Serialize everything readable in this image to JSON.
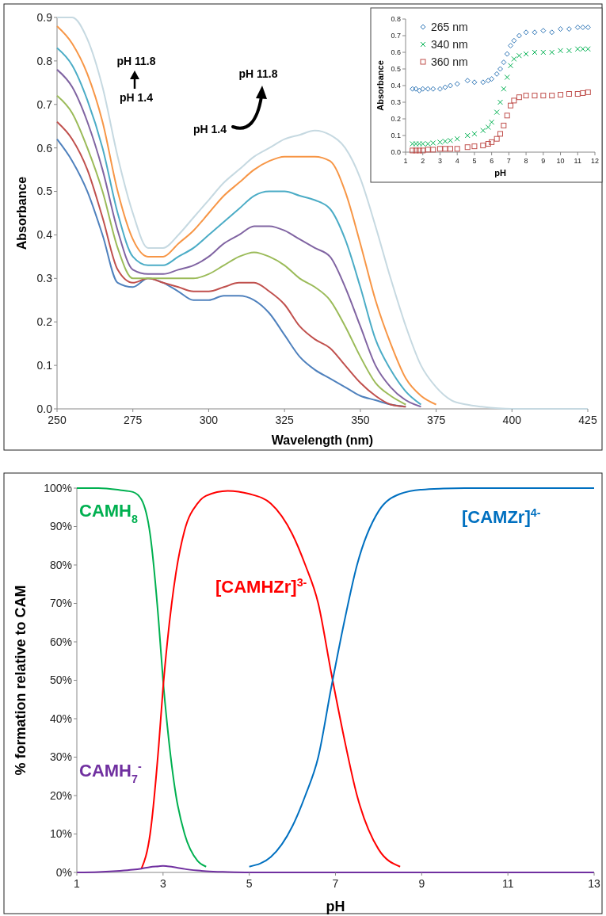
{
  "chart_data": [
    {
      "type": "line",
      "xlabel": "Wavelength (nm)",
      "ylabel": "Absorbance",
      "xlim": [
        250,
        425
      ],
      "xticks": [
        250,
        275,
        300,
        325,
        350,
        375,
        400,
        425
      ],
      "ylim": [
        0,
        0.9
      ],
      "yticks": [
        {
          "value": 0,
          "label": "0.0"
        },
        0.1,
        0.2,
        0.3,
        0.4,
        0.5,
        0.6,
        0.7,
        0.8,
        0.9
      ],
      "marker": "none",
      "annotations": [
        "pH 11.8",
        "pH 1.4",
        "pH 11.8",
        "pH 1.4"
      ],
      "x": [
        250,
        255,
        260,
        265,
        270,
        275,
        280,
        285,
        290,
        295,
        300,
        305,
        310,
        315,
        320,
        325,
        330,
        335,
        340,
        345,
        350,
        355,
        360,
        365,
        370,
        375,
        380,
        385,
        390,
        400,
        410,
        425
      ],
      "series": [
        {
          "color": "#4f81bd",
          "values": [
            0.62,
            0.57,
            0.5,
            0.4,
            0.29,
            0.28,
            0.3,
            0.29,
            0.27,
            0.25,
            0.25,
            0.26,
            0.26,
            0.25,
            0.22,
            0.17,
            0.12,
            0.09,
            0.07,
            0.05,
            0.03,
            0.02,
            0.01,
            0.005,
            null,
            null,
            null,
            null,
            null,
            null,
            null,
            null
          ]
        },
        {
          "color": "#c0504d",
          "values": [
            0.66,
            0.62,
            0.55,
            0.44,
            0.32,
            0.29,
            0.3,
            0.29,
            0.28,
            0.27,
            0.27,
            0.28,
            0.29,
            0.29,
            0.27,
            0.24,
            0.19,
            0.16,
            0.14,
            0.1,
            0.06,
            0.03,
            0.01,
            0.005,
            null,
            null,
            null,
            null,
            null,
            null,
            null,
            null
          ]
        },
        {
          "color": "#9bbb59",
          "values": [
            0.72,
            0.68,
            0.6,
            0.5,
            0.37,
            0.3,
            0.3,
            0.3,
            0.3,
            0.3,
            0.31,
            0.33,
            0.35,
            0.36,
            0.35,
            0.33,
            0.3,
            0.28,
            0.25,
            0.19,
            0.12,
            0.06,
            0.03,
            0.01,
            null,
            null,
            null,
            null,
            null,
            null,
            null,
            null
          ]
        },
        {
          "color": "#8064a2",
          "values": [
            0.78,
            0.74,
            0.66,
            0.55,
            0.41,
            0.32,
            0.31,
            0.31,
            0.32,
            0.33,
            0.35,
            0.38,
            0.4,
            0.42,
            0.42,
            0.41,
            0.39,
            0.37,
            0.35,
            0.28,
            0.19,
            0.1,
            0.05,
            0.02,
            0.005,
            null,
            null,
            null,
            null,
            null,
            null,
            null
          ]
        },
        {
          "color": "#4bacc6",
          "values": [
            0.83,
            0.79,
            0.71,
            0.6,
            0.45,
            0.35,
            0.33,
            0.33,
            0.35,
            0.37,
            0.4,
            0.43,
            0.46,
            0.49,
            0.5,
            0.5,
            0.49,
            0.48,
            0.46,
            0.39,
            0.28,
            0.16,
            0.09,
            0.04,
            0.01,
            null,
            null,
            null,
            null,
            null,
            null,
            null
          ]
        },
        {
          "color": "#f79646",
          "values": [
            0.88,
            0.84,
            0.77,
            0.66,
            0.5,
            0.39,
            0.35,
            0.35,
            0.38,
            0.41,
            0.45,
            0.49,
            0.52,
            0.55,
            0.57,
            0.58,
            0.58,
            0.58,
            0.57,
            0.5,
            0.38,
            0.25,
            0.15,
            0.07,
            0.03,
            0.01,
            null,
            null,
            null,
            null,
            null,
            null
          ]
        },
        {
          "color": "#c6d9e1",
          "values": [
            0.9,
            0.9,
            0.85,
            0.74,
            0.58,
            0.45,
            0.37,
            0.37,
            0.4,
            0.44,
            0.48,
            0.52,
            0.55,
            0.58,
            0.6,
            0.62,
            0.63,
            0.64,
            0.63,
            0.6,
            0.53,
            0.42,
            0.3,
            0.19,
            0.1,
            0.05,
            0.02,
            0.01,
            0.005,
            0,
            0,
            0
          ]
        }
      ]
    },
    {
      "type": "scatter",
      "xlabel": "pH",
      "ylabel": "Absorbance",
      "xlim": [
        1,
        12
      ],
      "xticks": [
        1,
        2,
        3,
        4,
        5,
        6,
        7,
        8,
        9,
        10,
        11,
        12
      ],
      "ylim": [
        0,
        0.8
      ],
      "yticks": [
        {
          "value": 0,
          "label": "0.0"
        },
        0.1,
        0.2,
        0.3,
        0.4,
        0.5,
        0.6,
        0.7,
        0.8
      ],
      "legend": "top left",
      "x": [
        1.4,
        1.6,
        1.8,
        2.0,
        2.3,
        2.6,
        3.0,
        3.3,
        3.6,
        4.0,
        4.6,
        5.0,
        5.5,
        5.8,
        6.0,
        6.3,
        6.5,
        6.7,
        6.9,
        7.1,
        7.3,
        7.6,
        8.0,
        8.5,
        9.0,
        9.5,
        10.0,
        10.5,
        11.0,
        11.3,
        11.6
      ],
      "series": [
        {
          "name": "265 nm",
          "color": "#2e75b6",
          "marker": "diamond",
          "values": [
            0.38,
            0.38,
            0.37,
            0.38,
            0.38,
            0.38,
            0.38,
            0.39,
            0.4,
            0.41,
            0.43,
            0.42,
            0.42,
            0.43,
            0.44,
            0.47,
            0.5,
            0.54,
            0.59,
            0.64,
            0.67,
            0.7,
            0.72,
            0.72,
            0.73,
            0.72,
            0.74,
            0.74,
            0.75,
            0.75,
            0.75
          ]
        },
        {
          "name": "340 nm",
          "color": "#00b050",
          "marker": "cross",
          "values": [
            0.05,
            0.05,
            0.05,
            0.05,
            0.05,
            0.055,
            0.06,
            0.065,
            0.07,
            0.08,
            0.1,
            0.11,
            0.13,
            0.15,
            0.18,
            0.24,
            0.3,
            0.38,
            0.45,
            0.52,
            0.56,
            0.58,
            0.59,
            0.6,
            0.6,
            0.6,
            0.61,
            0.61,
            0.62,
            0.62,
            0.62
          ]
        },
        {
          "name": "360 nm",
          "color": "#c0504d",
          "marker": "square",
          "values": [
            0.01,
            0.01,
            0.01,
            0.01,
            0.015,
            0.015,
            0.02,
            0.02,
            0.02,
            0.02,
            0.03,
            0.035,
            0.04,
            0.05,
            0.06,
            0.08,
            0.11,
            0.16,
            0.22,
            0.28,
            0.31,
            0.33,
            0.34,
            0.34,
            0.34,
            0.34,
            0.345,
            0.35,
            0.35,
            0.355,
            0.36
          ]
        }
      ]
    },
    {
      "type": "line",
      "xlabel": "pH",
      "ylabel": "% formation relative to CAM",
      "xlim": [
        1,
        13
      ],
      "xticks": [
        1,
        3,
        5,
        7,
        9,
        11,
        13
      ],
      "ylim": [
        0,
        100
      ],
      "yticks": [
        {
          "value": 0,
          "label": "0%"
        },
        {
          "value": 10,
          "label": "10%"
        },
        {
          "value": 20,
          "label": "20%"
        },
        {
          "value": 30,
          "label": "30%"
        },
        {
          "value": 40,
          "label": "40%"
        },
        {
          "value": 50,
          "label": "50%"
        },
        {
          "value": 60,
          "label": "60%"
        },
        {
          "value": 70,
          "label": "70%"
        },
        {
          "value": 80,
          "label": "80%"
        },
        {
          "value": 90,
          "label": "90%"
        },
        {
          "value": 100,
          "label": "100%"
        }
      ],
      "marker": "none",
      "x": [
        1,
        1.5,
        2,
        2.3,
        2.5,
        2.7,
        2.9,
        3.0,
        3.1,
        3.3,
        3.5,
        3.8,
        4,
        4.5,
        5,
        5.5,
        6,
        6.3,
        6.6,
        6.9,
        7.2,
        7.5,
        8,
        8.5,
        9,
        9.5,
        10,
        11,
        12,
        13
      ],
      "series": [
        {
          "name": "CAMH$_{8}$",
          "color": "#00b050",
          "values": [
            100,
            100,
            99.5,
            99,
            97,
            88,
            65,
            50,
            38,
            20,
            10,
            3,
            1.5,
            null,
            null,
            null,
            null,
            null,
            null,
            null,
            null,
            null,
            null,
            null,
            null,
            null,
            null,
            null,
            null,
            null
          ]
        },
        {
          "name": "[CAMHZr]$^{3-}$",
          "color": "#ff0000",
          "values": [
            null,
            null,
            null,
            null,
            1,
            10,
            33,
            48,
            60,
            78,
            89,
            96,
            98,
            99.3,
            98.5,
            96,
            88,
            80,
            70,
            52,
            35,
            20,
            6,
            1.5,
            null,
            null,
            null,
            null,
            null,
            null
          ]
        },
        {
          "name": "[CAMZr]$^{4-}$",
          "color": "#0070c0",
          "values": [
            null,
            null,
            null,
            null,
            null,
            null,
            null,
            null,
            null,
            null,
            null,
            null,
            null,
            null,
            1.5,
            4,
            12,
            20,
            30,
            48,
            65,
            80,
            94,
            98.5,
            99.6,
            99.9,
            100,
            100,
            100,
            100
          ]
        },
        {
          "name": "CAMH$_{7}$$^{-}$",
          "color": "#7030a0",
          "values": [
            0,
            0.1,
            0.4,
            0.7,
            1,
            1.4,
            1.6,
            1.7,
            1.6,
            1.3,
            0.9,
            0.5,
            0.3,
            0.1,
            0,
            0,
            0,
            0,
            0,
            0,
            0,
            0,
            0,
            0,
            0,
            0,
            0,
            0,
            0,
            0
          ]
        }
      ]
    }
  ]
}
